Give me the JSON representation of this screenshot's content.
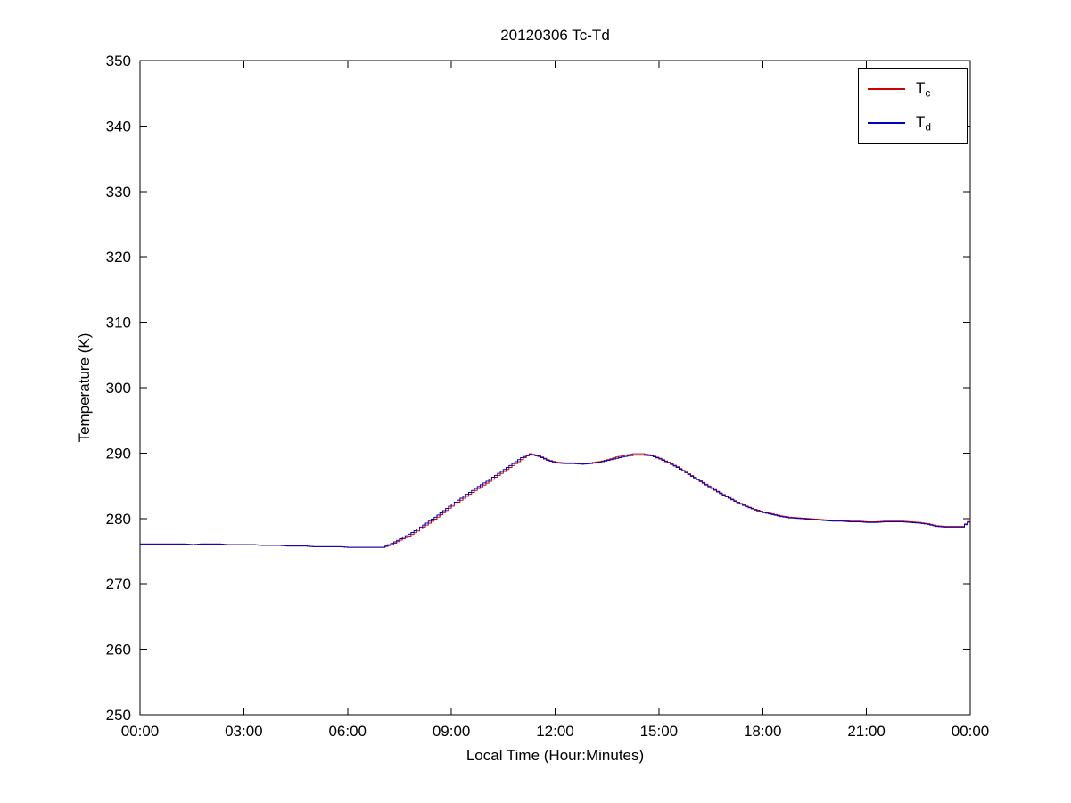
{
  "chart_data": {
    "type": "line",
    "title": "20120306 Tc-Td",
    "xlabel": "Local Time (Hour:Minutes)",
    "ylabel": "Temperature (K)",
    "xlim": [
      0,
      24
    ],
    "ylim": [
      250,
      350
    ],
    "x_ticks": [
      0,
      3,
      6,
      9,
      12,
      15,
      18,
      21,
      24
    ],
    "x_tick_labels": [
      "00:00",
      "03:00",
      "06:00",
      "09:00",
      "12:00",
      "15:00",
      "18:00",
      "21:00",
      "00:00"
    ],
    "y_ticks": [
      250,
      260,
      270,
      280,
      290,
      300,
      310,
      320,
      330,
      340,
      350
    ],
    "y_tick_labels": [
      "250",
      "260",
      "270",
      "280",
      "290",
      "300",
      "310",
      "320",
      "330",
      "340",
      "350"
    ],
    "grid": false,
    "axis_color": "#000000",
    "legend": {
      "position": "top-right",
      "entries": [
        {
          "name": "Tc",
          "label_main": "T",
          "label_sub": "c",
          "color": "#cc0000"
        },
        {
          "name": "Td",
          "label_main": "T",
          "label_sub": "d",
          "color": "#0000bb"
        }
      ]
    },
    "x": [
      0,
      0.25,
      0.5,
      0.75,
      1,
      1.25,
      1.5,
      1.75,
      2,
      2.25,
      2.5,
      2.75,
      3,
      3.25,
      3.5,
      3.75,
      4,
      4.25,
      4.5,
      4.75,
      5,
      5.25,
      5.5,
      5.75,
      6,
      6.25,
      6.5,
      6.75,
      7,
      7.25,
      7.5,
      7.75,
      8,
      8.25,
      8.5,
      8.75,
      9,
      9.25,
      9.5,
      9.75,
      10,
      10.25,
      10.5,
      10.75,
      11,
      11.25,
      11.5,
      11.75,
      12,
      12.25,
      12.5,
      12.75,
      13,
      13.25,
      13.5,
      13.75,
      14,
      14.25,
      14.5,
      14.75,
      15,
      15.25,
      15.5,
      15.75,
      16,
      16.25,
      16.5,
      16.75,
      17,
      17.25,
      17.5,
      17.75,
      18,
      18.25,
      18.5,
      18.75,
      19,
      19.25,
      19.5,
      19.75,
      20,
      20.25,
      20.5,
      20.75,
      21,
      21.25,
      21.5,
      21.75,
      22,
      22.25,
      22.5,
      22.75,
      23,
      23.25,
      23.5,
      23.75,
      24
    ],
    "series": [
      {
        "name": "Tc",
        "color": "#cc0000",
        "values": [
          276.1,
          276.1,
          276.1,
          276.1,
          276.1,
          276.1,
          276.0,
          276.1,
          276.1,
          276.1,
          276.0,
          276.0,
          276.0,
          276.0,
          275.9,
          275.9,
          275.9,
          275.8,
          275.8,
          275.8,
          275.7,
          275.7,
          275.7,
          275.7,
          275.6,
          275.6,
          275.6,
          275.6,
          275.6,
          276.0,
          276.7,
          277.3,
          278.1,
          279.0,
          279.9,
          280.9,
          281.9,
          282.8,
          283.7,
          284.6,
          285.4,
          286.3,
          287.2,
          288.1,
          289.0,
          289.9,
          289.6,
          289.0,
          288.6,
          288.5,
          288.5,
          288.4,
          288.5,
          288.7,
          289.0,
          289.4,
          289.7,
          289.9,
          289.9,
          289.7,
          289.2,
          288.6,
          287.9,
          287.1,
          286.3,
          285.5,
          284.7,
          283.9,
          283.2,
          282.5,
          281.9,
          281.4,
          281.0,
          280.7,
          280.4,
          280.2,
          280.1,
          280.0,
          279.9,
          279.8,
          279.7,
          279.7,
          279.6,
          279.6,
          279.5,
          279.5,
          279.6,
          279.6,
          279.6,
          279.5,
          279.4,
          279.2,
          278.9,
          278.8,
          278.8,
          278.8,
          279.9
        ]
      },
      {
        "name": "Td",
        "color": "#0000bb",
        "values": [
          276.1,
          276.1,
          276.1,
          276.1,
          276.1,
          276.1,
          276.0,
          276.1,
          276.1,
          276.1,
          276.0,
          276.0,
          276.0,
          276.0,
          275.9,
          275.9,
          275.9,
          275.8,
          275.8,
          275.8,
          275.7,
          275.7,
          275.7,
          275.7,
          275.6,
          275.6,
          275.6,
          275.6,
          275.6,
          276.2,
          276.9,
          277.6,
          278.4,
          279.3,
          280.2,
          281.2,
          282.2,
          283.1,
          284.0,
          284.9,
          285.7,
          286.6,
          287.5,
          288.4,
          289.3,
          289.8,
          289.5,
          288.9,
          288.5,
          288.4,
          288.4,
          288.3,
          288.4,
          288.6,
          288.9,
          289.2,
          289.5,
          289.7,
          289.7,
          289.6,
          289.1,
          288.5,
          287.8,
          287.0,
          286.2,
          285.4,
          284.6,
          283.8,
          283.1,
          282.4,
          281.8,
          281.3,
          280.9,
          280.6,
          280.3,
          280.1,
          280.0,
          279.9,
          279.8,
          279.7,
          279.6,
          279.6,
          279.5,
          279.5,
          279.4,
          279.4,
          279.5,
          279.5,
          279.5,
          279.4,
          279.3,
          279.1,
          278.8,
          278.7,
          278.7,
          278.7,
          279.8
        ]
      }
    ]
  }
}
